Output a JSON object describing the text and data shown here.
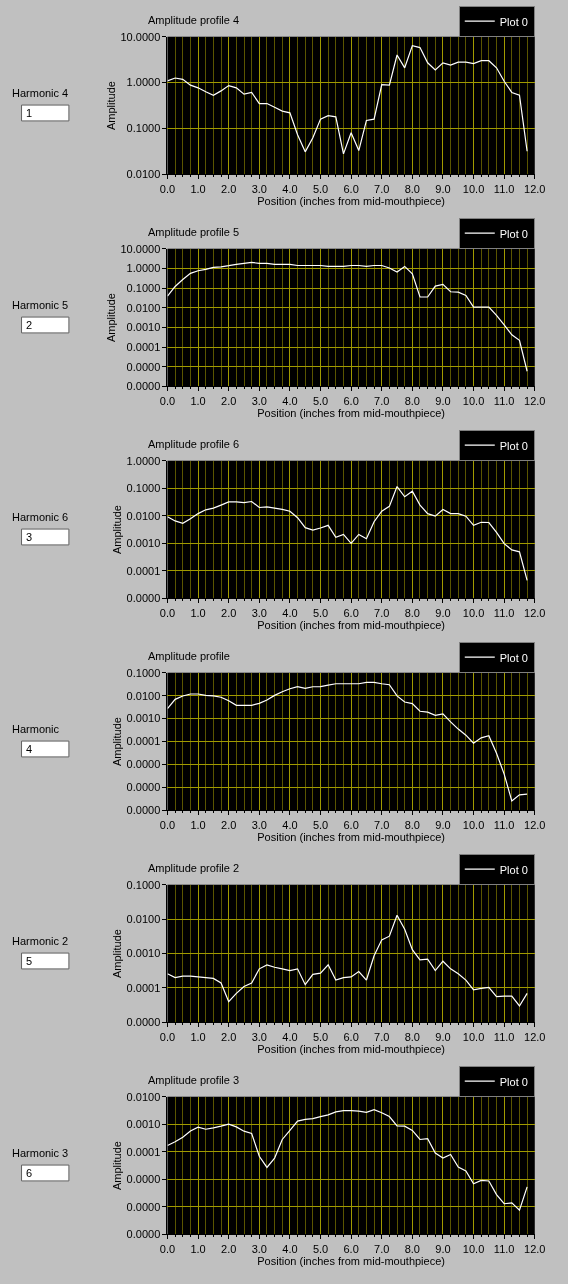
{
  "chart_data": [
    {
      "type": "line",
      "title": "Amplitude profile 4",
      "xlabel": "Position (inches from mid-mouthpiece)",
      "ylabel": "Amplitude",
      "log": "y",
      "grid": true,
      "legend": "top right",
      "annotations": [
        "Harmonic 4",
        "1"
      ],
      "xlim": [
        0,
        12
      ],
      "xticks": [
        {
          "value": 0,
          "label": "0.0"
        },
        {
          "value": 0.25,
          "label": null
        },
        {
          "value": 0.5,
          "label": null
        },
        {
          "value": 0.75,
          "label": null
        },
        {
          "value": 1,
          "label": "1.0"
        },
        {
          "value": 1.25,
          "label": null
        },
        {
          "value": 1.5,
          "label": null
        },
        {
          "value": 1.75,
          "label": null
        },
        {
          "value": 2,
          "label": "2.0"
        },
        {
          "value": 2.25,
          "label": null
        },
        {
          "value": 2.5,
          "label": null
        },
        {
          "value": 2.75,
          "label": null
        },
        {
          "value": 3,
          "label": "3.0"
        },
        {
          "value": 3.25,
          "label": null
        },
        {
          "value": 3.5,
          "label": null
        },
        {
          "value": 3.75,
          "label": null
        },
        {
          "value": 4,
          "label": "4.0"
        },
        {
          "value": 4.25,
          "label": null
        },
        {
          "value": 4.5,
          "label": null
        },
        {
          "value": 4.75,
          "label": null
        },
        {
          "value": 5,
          "label": "5.0"
        },
        {
          "value": 5.25,
          "label": null
        },
        {
          "value": 5.5,
          "label": null
        },
        {
          "value": 5.75,
          "label": null
        },
        {
          "value": 6,
          "label": "6.0"
        },
        {
          "value": 6.25,
          "label": null
        },
        {
          "value": 6.5,
          "label": null
        },
        {
          "value": 6.75,
          "label": null
        },
        {
          "value": 7,
          "label": "7.0"
        },
        {
          "value": 7.25,
          "label": null
        },
        {
          "value": 7.5,
          "label": null
        },
        {
          "value": 7.75,
          "label": null
        },
        {
          "value": 8,
          "label": "8.0"
        },
        {
          "value": 8.25,
          "label": null
        },
        {
          "value": 8.5,
          "label": null
        },
        {
          "value": 8.75,
          "label": null
        },
        {
          "value": 9,
          "label": "9.0"
        },
        {
          "value": 9.25,
          "label": null
        },
        {
          "value": 9.5,
          "label": null
        },
        {
          "value": 9.75,
          "label": null
        },
        {
          "value": 10,
          "label": "10.0"
        },
        {
          "value": 10.25,
          "label": null
        },
        {
          "value": 10.5,
          "label": null
        },
        {
          "value": 10.75,
          "label": null
        },
        {
          "value": 11,
          "label": "11.0"
        },
        {
          "value": 11.25,
          "label": null
        },
        {
          "value": 11.5,
          "label": null
        },
        {
          "value": 11.75,
          "label": null
        },
        {
          "value": 12,
          "label": "12.0"
        }
      ],
      "ylim": [
        0.01,
        10
      ],
      "yticks": [
        {
          "value": 0.01,
          "label": "0.0100"
        },
        {
          "value": 0.1,
          "label": "0.1000"
        },
        {
          "value": 1,
          "label": "1.0000"
        },
        {
          "value": 10,
          "label": "10.0000"
        }
      ],
      "x": [
        0,
        0.25,
        0.5,
        0.75,
        1,
        1.25,
        1.5,
        1.75,
        2,
        2.25,
        2.5,
        2.75,
        3,
        3.25,
        3.5,
        3.75,
        4,
        4.25,
        4.5,
        4.75,
        5,
        5.25,
        5.5,
        5.75,
        6,
        6.25,
        6.5,
        6.75,
        7,
        7.25,
        7.5,
        7.75,
        8,
        8.25,
        8.5,
        8.75,
        9,
        9.25,
        9.5,
        9.75,
        10,
        10.25,
        10.5,
        10.75,
        11,
        11.25,
        11.5,
        11.75
      ],
      "series": [
        {
          "name": "Plot 0",
          "color": "#ffffff",
          "values": [
            1.09,
            1.26,
            1.18,
            0.88,
            0.77,
            0.63,
            0.53,
            0.66,
            0.86,
            0.77,
            0.56,
            0.61,
            0.35,
            0.35,
            0.29,
            0.24,
            0.22,
            0.073,
            0.031,
            0.063,
            0.16,
            0.19,
            0.18,
            0.028,
            0.081,
            0.033,
            0.15,
            0.16,
            0.9,
            0.88,
            4.0,
            2.1,
            6.4,
            5.8,
            2.7,
            1.9,
            2.7,
            2.4,
            2.8,
            2.8,
            2.6,
            3.0,
            3.0,
            2.1,
            1.07,
            0.61,
            0.53,
            0.032
          ]
        }
      ]
    },
    {
      "type": "line",
      "title": "Amplitude profile 5",
      "xlabel": "Position (inches from mid-mouthpiece)",
      "ylabel": "Amplitude",
      "log": "y",
      "grid": true,
      "legend": "top right",
      "annotations": [
        "Harmonic 5",
        "2"
      ],
      "xlim": [
        0,
        12
      ],
      "xticks": [
        {
          "value": 0,
          "label": "0.0"
        },
        {
          "value": 0.25,
          "label": null
        },
        {
          "value": 0.5,
          "label": null
        },
        {
          "value": 0.75,
          "label": null
        },
        {
          "value": 1,
          "label": "1.0"
        },
        {
          "value": 1.25,
          "label": null
        },
        {
          "value": 1.5,
          "label": null
        },
        {
          "value": 1.75,
          "label": null
        },
        {
          "value": 2,
          "label": "2.0"
        },
        {
          "value": 2.25,
          "label": null
        },
        {
          "value": 2.5,
          "label": null
        },
        {
          "value": 2.75,
          "label": null
        },
        {
          "value": 3,
          "label": "3.0"
        },
        {
          "value": 3.25,
          "label": null
        },
        {
          "value": 3.5,
          "label": null
        },
        {
          "value": 3.75,
          "label": null
        },
        {
          "value": 4,
          "label": "4.0"
        },
        {
          "value": 4.25,
          "label": null
        },
        {
          "value": 4.5,
          "label": null
        },
        {
          "value": 4.75,
          "label": null
        },
        {
          "value": 5,
          "label": "5.0"
        },
        {
          "value": 5.25,
          "label": null
        },
        {
          "value": 5.5,
          "label": null
        },
        {
          "value": 5.75,
          "label": null
        },
        {
          "value": 6,
          "label": "6.0"
        },
        {
          "value": 6.25,
          "label": null
        },
        {
          "value": 6.5,
          "label": null
        },
        {
          "value": 6.75,
          "label": null
        },
        {
          "value": 7,
          "label": "7.0"
        },
        {
          "value": 7.25,
          "label": null
        },
        {
          "value": 7.5,
          "label": null
        },
        {
          "value": 7.75,
          "label": null
        },
        {
          "value": 8,
          "label": "8.0"
        },
        {
          "value": 8.25,
          "label": null
        },
        {
          "value": 8.5,
          "label": null
        },
        {
          "value": 8.75,
          "label": null
        },
        {
          "value": 9,
          "label": "9.0"
        },
        {
          "value": 9.25,
          "label": null
        },
        {
          "value": 9.5,
          "label": null
        },
        {
          "value": 9.75,
          "label": null
        },
        {
          "value": 10,
          "label": "10.0"
        },
        {
          "value": 10.25,
          "label": null
        },
        {
          "value": 10.5,
          "label": null
        },
        {
          "value": 10.75,
          "label": null
        },
        {
          "value": 11,
          "label": "11.0"
        },
        {
          "value": 11.25,
          "label": null
        },
        {
          "value": 11.5,
          "label": null
        },
        {
          "value": 11.75,
          "label": null
        },
        {
          "value": 12,
          "label": "12.0"
        }
      ],
      "ylim": [
        1e-06,
        10
      ],
      "yticks": [
        {
          "value": 1e-06,
          "label": "0.0000"
        },
        {
          "value": 1e-05,
          "label": "0.0000"
        },
        {
          "value": 0.0001,
          "label": "0.0001"
        },
        {
          "value": 0.001,
          "label": "0.0010"
        },
        {
          "value": 0.01,
          "label": "0.0100"
        },
        {
          "value": 0.1,
          "label": "0.1000"
        },
        {
          "value": 1,
          "label": "1.0000"
        },
        {
          "value": 10,
          "label": "10.0000"
        }
      ],
      "x": [
        0,
        0.25,
        0.5,
        0.75,
        1,
        1.25,
        1.5,
        1.75,
        2,
        2.25,
        2.5,
        2.75,
        3,
        3.25,
        3.5,
        3.75,
        4,
        4.25,
        4.5,
        4.75,
        5,
        5.25,
        5.5,
        5.75,
        6,
        6.25,
        6.5,
        6.75,
        7,
        7.25,
        7.5,
        7.75,
        8,
        8.25,
        8.5,
        8.75,
        9,
        9.25,
        9.5,
        9.75,
        10,
        10.25,
        10.5,
        10.75,
        11,
        11.25,
        11.5,
        11.75
      ],
      "series": [
        {
          "name": "Plot 0",
          "color": "#ffffff",
          "values": [
            0.039,
            0.12,
            0.27,
            0.56,
            0.76,
            0.89,
            1.12,
            1.2,
            1.37,
            1.6,
            1.8,
            2.0,
            1.8,
            1.8,
            1.6,
            1.6,
            1.6,
            1.4,
            1.4,
            1.4,
            1.4,
            1.26,
            1.26,
            1.26,
            1.4,
            1.4,
            1.26,
            1.4,
            1.4,
            1.04,
            0.65,
            1.26,
            0.53,
            0.035,
            0.035,
            0.126,
            0.153,
            0.065,
            0.062,
            0.042,
            0.0107,
            0.0107,
            0.0107,
            0.0041,
            0.00135,
            0.00042,
            0.00022,
            5.9e-06
          ]
        }
      ]
    },
    {
      "type": "line",
      "title": "Amplitude profile 6",
      "xlabel": "Position (inches from mid-mouthpiece)",
      "ylabel": "Amplitude",
      "log": "y",
      "grid": true,
      "legend": "top right",
      "annotations": [
        "Harmonic 6",
        "3"
      ],
      "xlim": [
        0,
        12
      ],
      "xticks": [
        {
          "value": 0,
          "label": "0.0"
        },
        {
          "value": 0.25,
          "label": null
        },
        {
          "value": 0.5,
          "label": null
        },
        {
          "value": 0.75,
          "label": null
        },
        {
          "value": 1,
          "label": "1.0"
        },
        {
          "value": 1.25,
          "label": null
        },
        {
          "value": 1.5,
          "label": null
        },
        {
          "value": 1.75,
          "label": null
        },
        {
          "value": 2,
          "label": "2.0"
        },
        {
          "value": 2.25,
          "label": null
        },
        {
          "value": 2.5,
          "label": null
        },
        {
          "value": 2.75,
          "label": null
        },
        {
          "value": 3,
          "label": "3.0"
        },
        {
          "value": 3.25,
          "label": null
        },
        {
          "value": 3.5,
          "label": null
        },
        {
          "value": 3.75,
          "label": null
        },
        {
          "value": 4,
          "label": "4.0"
        },
        {
          "value": 4.25,
          "label": null
        },
        {
          "value": 4.5,
          "label": null
        },
        {
          "value": 4.75,
          "label": null
        },
        {
          "value": 5,
          "label": "5.0"
        },
        {
          "value": 5.25,
          "label": null
        },
        {
          "value": 5.5,
          "label": null
        },
        {
          "value": 5.75,
          "label": null
        },
        {
          "value": 6,
          "label": "6.0"
        },
        {
          "value": 6.25,
          "label": null
        },
        {
          "value": 6.5,
          "label": null
        },
        {
          "value": 6.75,
          "label": null
        },
        {
          "value": 7,
          "label": "7.0"
        },
        {
          "value": 7.25,
          "label": null
        },
        {
          "value": 7.5,
          "label": null
        },
        {
          "value": 7.75,
          "label": null
        },
        {
          "value": 8,
          "label": "8.0"
        },
        {
          "value": 8.25,
          "label": null
        },
        {
          "value": 8.5,
          "label": null
        },
        {
          "value": 8.75,
          "label": null
        },
        {
          "value": 9,
          "label": "9.0"
        },
        {
          "value": 9.25,
          "label": null
        },
        {
          "value": 9.5,
          "label": null
        },
        {
          "value": 9.75,
          "label": null
        },
        {
          "value": 10,
          "label": "10.0"
        },
        {
          "value": 10.25,
          "label": null
        },
        {
          "value": 10.5,
          "label": null
        },
        {
          "value": 10.75,
          "label": null
        },
        {
          "value": 11,
          "label": "11.0"
        },
        {
          "value": 11.25,
          "label": null
        },
        {
          "value": 11.5,
          "label": null
        },
        {
          "value": 11.75,
          "label": null
        },
        {
          "value": 12,
          "label": "12.0"
        }
      ],
      "ylim": [
        1e-05,
        1
      ],
      "yticks": [
        {
          "value": 1e-05,
          "label": "0.0000"
        },
        {
          "value": 0.0001,
          "label": "0.0001"
        },
        {
          "value": 0.001,
          "label": "0.0010"
        },
        {
          "value": 0.01,
          "label": "0.0100"
        },
        {
          "value": 0.1,
          "label": "0.1000"
        },
        {
          "value": 1,
          "label": "1.0000"
        }
      ],
      "x": [
        0,
        0.25,
        0.5,
        0.75,
        1,
        1.25,
        1.5,
        1.75,
        2,
        2.25,
        2.5,
        2.75,
        3,
        3.25,
        3.5,
        3.75,
        4,
        4.25,
        4.5,
        4.75,
        5,
        5.25,
        5.5,
        5.75,
        6,
        6.25,
        6.5,
        6.75,
        7,
        7.25,
        7.5,
        7.75,
        8,
        8.25,
        8.5,
        8.75,
        9,
        9.25,
        9.5,
        9.75,
        10,
        10.25,
        10.5,
        10.75,
        11,
        11.25,
        11.5,
        11.75
      ],
      "series": [
        {
          "name": "Plot 0",
          "color": "#ffffff",
          "values": [
            0.0092,
            0.0065,
            0.0053,
            0.0078,
            0.012,
            0.0165,
            0.019,
            0.0245,
            0.032,
            0.032,
            0.03,
            0.033,
            0.02,
            0.021,
            0.019,
            0.017,
            0.0147,
            0.0085,
            0.0037,
            0.003,
            0.0036,
            0.0045,
            0.00165,
            0.0021,
            0.001,
            0.0021,
            0.00147,
            0.0061,
            0.0147,
            0.022,
            0.115,
            0.049,
            0.078,
            0.0245,
            0.012,
            0.0097,
            0.017,
            0.012,
            0.012,
            0.0097,
            0.0045,
            0.0058,
            0.0057,
            0.0025,
            0.00097,
            0.00058,
            0.00049,
            4.5e-05
          ]
        }
      ]
    },
    {
      "type": "line",
      "title": "Amplitude profile",
      "xlabel": "Position (inches from mid-mouthpiece)",
      "ylabel": "Amplitude",
      "log": "y",
      "grid": true,
      "legend": "top right",
      "annotations": [
        "Harmonic",
        "4"
      ],
      "xlim": [
        0,
        12
      ],
      "xticks": [
        {
          "value": 0,
          "label": "0.0"
        },
        {
          "value": 0.25,
          "label": null
        },
        {
          "value": 0.5,
          "label": null
        },
        {
          "value": 0.75,
          "label": null
        },
        {
          "value": 1,
          "label": "1.0"
        },
        {
          "value": 1.25,
          "label": null
        },
        {
          "value": 1.5,
          "label": null
        },
        {
          "value": 1.75,
          "label": null
        },
        {
          "value": 2,
          "label": "2.0"
        },
        {
          "value": 2.25,
          "label": null
        },
        {
          "value": 2.5,
          "label": null
        },
        {
          "value": 2.75,
          "label": null
        },
        {
          "value": 3,
          "label": "3.0"
        },
        {
          "value": 3.25,
          "label": null
        },
        {
          "value": 3.5,
          "label": null
        },
        {
          "value": 3.75,
          "label": null
        },
        {
          "value": 4,
          "label": "4.0"
        },
        {
          "value": 4.25,
          "label": null
        },
        {
          "value": 4.5,
          "label": null
        },
        {
          "value": 4.75,
          "label": null
        },
        {
          "value": 5,
          "label": "5.0"
        },
        {
          "value": 5.25,
          "label": null
        },
        {
          "value": 5.5,
          "label": null
        },
        {
          "value": 5.75,
          "label": null
        },
        {
          "value": 6,
          "label": "6.0"
        },
        {
          "value": 6.25,
          "label": null
        },
        {
          "value": 6.5,
          "label": null
        },
        {
          "value": 6.75,
          "label": null
        },
        {
          "value": 7,
          "label": "7.0"
        },
        {
          "value": 7.25,
          "label": null
        },
        {
          "value": 7.5,
          "label": null
        },
        {
          "value": 7.75,
          "label": null
        },
        {
          "value": 8,
          "label": "8.0"
        },
        {
          "value": 8.25,
          "label": null
        },
        {
          "value": 8.5,
          "label": null
        },
        {
          "value": 8.75,
          "label": null
        },
        {
          "value": 9,
          "label": "9.0"
        },
        {
          "value": 9.25,
          "label": null
        },
        {
          "value": 9.5,
          "label": null
        },
        {
          "value": 9.75,
          "label": null
        },
        {
          "value": 10,
          "label": "10.0"
        },
        {
          "value": 10.25,
          "label": null
        },
        {
          "value": 10.5,
          "label": null
        },
        {
          "value": 10.75,
          "label": null
        },
        {
          "value": 11,
          "label": "11.0"
        },
        {
          "value": 11.25,
          "label": null
        },
        {
          "value": 11.5,
          "label": null
        },
        {
          "value": 11.75,
          "label": null
        },
        {
          "value": 12,
          "label": "12.0"
        }
      ],
      "ylim": [
        1e-07,
        0.1
      ],
      "yticks": [
        {
          "value": 1e-07,
          "label": "0.0000"
        },
        {
          "value": 1e-06,
          "label": "0.0000"
        },
        {
          "value": 1e-05,
          "label": "0.0000"
        },
        {
          "value": 0.0001,
          "label": "0.0001"
        },
        {
          "value": 0.001,
          "label": "0.0010"
        },
        {
          "value": 0.01,
          "label": "0.0100"
        },
        {
          "value": 0.1,
          "label": "0.1000"
        }
      ],
      "x": [
        0,
        0.25,
        0.5,
        0.75,
        1,
        1.25,
        1.5,
        1.75,
        2,
        2.25,
        2.5,
        2.75,
        3,
        3.25,
        3.5,
        3.75,
        4,
        4.25,
        4.5,
        4.75,
        5,
        5.25,
        5.5,
        5.75,
        6,
        6.25,
        6.5,
        6.75,
        7,
        7.25,
        7.5,
        7.75,
        8,
        8.25,
        8.5,
        8.75,
        9,
        9.25,
        9.5,
        9.75,
        10,
        10.25,
        10.5,
        10.75,
        11,
        11.25,
        11.5,
        11.75
      ],
      "series": [
        {
          "name": "Plot 0",
          "color": "#ffffff",
          "values": [
            0.0027,
            0.0069,
            0.0097,
            0.0118,
            0.0118,
            0.0103,
            0.0097,
            0.0085,
            0.006,
            0.0038,
            0.0038,
            0.0038,
            0.0046,
            0.0065,
            0.0103,
            0.0149,
            0.02,
            0.0245,
            0.021,
            0.0245,
            0.025,
            0.029,
            0.033,
            0.033,
            0.033,
            0.033,
            0.038,
            0.038,
            0.033,
            0.03,
            0.0097,
            0.0053,
            0.0045,
            0.0021,
            0.0019,
            0.0014,
            0.0016,
            0.00072,
            0.00035,
            0.00019,
            8.5e-05,
            0.000145,
            0.00018,
            3.1e-05,
            3.8e-06,
            2.6e-07,
            4.8e-07,
            5.1e-07
          ]
        }
      ]
    },
    {
      "type": "line",
      "title": "Amplitude profile 2",
      "xlabel": "Position (inches from mid-mouthpiece)",
      "ylabel": "Amplitude",
      "log": "y",
      "grid": true,
      "legend": "top right",
      "annotations": [
        "Harmonic 2",
        "5"
      ],
      "xlim": [
        0,
        12
      ],
      "xticks": [
        {
          "value": 0,
          "label": "0.0"
        },
        {
          "value": 0.25,
          "label": null
        },
        {
          "value": 0.5,
          "label": null
        },
        {
          "value": 0.75,
          "label": null
        },
        {
          "value": 1,
          "label": "1.0"
        },
        {
          "value": 1.25,
          "label": null
        },
        {
          "value": 1.5,
          "label": null
        },
        {
          "value": 1.75,
          "label": null
        },
        {
          "value": 2,
          "label": "2.0"
        },
        {
          "value": 2.25,
          "label": null
        },
        {
          "value": 2.5,
          "label": null
        },
        {
          "value": 2.75,
          "label": null
        },
        {
          "value": 3,
          "label": "3.0"
        },
        {
          "value": 3.25,
          "label": null
        },
        {
          "value": 3.5,
          "label": null
        },
        {
          "value": 3.75,
          "label": null
        },
        {
          "value": 4,
          "label": "4.0"
        },
        {
          "value": 4.25,
          "label": null
        },
        {
          "value": 4.5,
          "label": null
        },
        {
          "value": 4.75,
          "label": null
        },
        {
          "value": 5,
          "label": "5.0"
        },
        {
          "value": 5.25,
          "label": null
        },
        {
          "value": 5.5,
          "label": null
        },
        {
          "value": 5.75,
          "label": null
        },
        {
          "value": 6,
          "label": "6.0"
        },
        {
          "value": 6.25,
          "label": null
        },
        {
          "value": 6.5,
          "label": null
        },
        {
          "value": 6.75,
          "label": null
        },
        {
          "value": 7,
          "label": "7.0"
        },
        {
          "value": 7.25,
          "label": null
        },
        {
          "value": 7.5,
          "label": null
        },
        {
          "value": 7.75,
          "label": null
        },
        {
          "value": 8,
          "label": "8.0"
        },
        {
          "value": 8.25,
          "label": null
        },
        {
          "value": 8.5,
          "label": null
        },
        {
          "value": 8.75,
          "label": null
        },
        {
          "value": 9,
          "label": "9.0"
        },
        {
          "value": 9.25,
          "label": null
        },
        {
          "value": 9.5,
          "label": null
        },
        {
          "value": 9.75,
          "label": null
        },
        {
          "value": 10,
          "label": "10.0"
        },
        {
          "value": 10.25,
          "label": null
        },
        {
          "value": 10.5,
          "label": null
        },
        {
          "value": 10.75,
          "label": null
        },
        {
          "value": 11,
          "label": "11.0"
        },
        {
          "value": 11.25,
          "label": null
        },
        {
          "value": 11.5,
          "label": null
        },
        {
          "value": 11.75,
          "label": null
        },
        {
          "value": 12,
          "label": "12.0"
        }
      ],
      "ylim": [
        1e-05,
        0.1
      ],
      "yticks": [
        {
          "value": 1e-05,
          "label": "0.0000"
        },
        {
          "value": 0.0001,
          "label": "0.0001"
        },
        {
          "value": 0.001,
          "label": "0.0010"
        },
        {
          "value": 0.01,
          "label": "0.0100"
        },
        {
          "value": 0.1,
          "label": "0.1000"
        }
      ],
      "x": [
        0,
        0.25,
        0.5,
        0.75,
        1,
        1.25,
        1.5,
        1.75,
        2,
        2.25,
        2.5,
        2.75,
        3,
        3.25,
        3.5,
        3.75,
        4,
        4.25,
        4.5,
        4.75,
        5,
        5.25,
        5.5,
        5.75,
        6,
        6.25,
        6.5,
        6.75,
        7,
        7.25,
        7.5,
        7.75,
        8,
        8.25,
        8.5,
        8.75,
        9,
        9.25,
        9.5,
        9.75,
        10,
        10.25,
        10.5,
        10.75,
        11,
        11.25,
        11.5,
        11.75
      ],
      "series": [
        {
          "name": "Plot 0",
          "color": "#ffffff",
          "values": [
            0.00026,
            0.0002,
            0.00022,
            0.00022,
            0.00021,
            0.0002,
            0.00019,
            0.00014,
            4e-05,
            7e-05,
            0.00011,
            0.00014,
            0.00036,
            0.00047,
            0.0004,
            0.00036,
            0.00032,
            0.00036,
            0.000125,
            0.00025,
            0.00027,
            0.00047,
            0.00017,
            0.0002,
            0.00021,
            0.0003,
            0.00017,
            0.00086,
            0.0025,
            0.0032,
            0.013,
            0.0051,
            0.0013,
            0.00066,
            0.00069,
            0.00032,
            0.0006,
            0.00036,
            0.00026,
            0.00017,
            8.8e-05,
            9.8e-05,
            0.000104,
            5.6e-05,
            5.8e-05,
            5.8e-05,
            3e-05,
            7e-05
          ]
        }
      ]
    },
    {
      "type": "line",
      "title": "Amplitude profile 3",
      "xlabel": "Position (inches from mid-mouthpiece)",
      "ylabel": "Amplitude",
      "log": "y",
      "grid": true,
      "legend": "top right",
      "annotations": [
        "Harmonic 3",
        "6"
      ],
      "xlim": [
        0,
        12
      ],
      "xticks": [
        {
          "value": 0,
          "label": "0.0"
        },
        {
          "value": 0.25,
          "label": null
        },
        {
          "value": 0.5,
          "label": null
        },
        {
          "value": 0.75,
          "label": null
        },
        {
          "value": 1,
          "label": "1.0"
        },
        {
          "value": 1.25,
          "label": null
        },
        {
          "value": 1.5,
          "label": null
        },
        {
          "value": 1.75,
          "label": null
        },
        {
          "value": 2,
          "label": "2.0"
        },
        {
          "value": 2.25,
          "label": null
        },
        {
          "value": 2.5,
          "label": null
        },
        {
          "value": 2.75,
          "label": null
        },
        {
          "value": 3,
          "label": "3.0"
        },
        {
          "value": 3.25,
          "label": null
        },
        {
          "value": 3.5,
          "label": null
        },
        {
          "value": 3.75,
          "label": null
        },
        {
          "value": 4,
          "label": "4.0"
        },
        {
          "value": 4.25,
          "label": null
        },
        {
          "value": 4.5,
          "label": null
        },
        {
          "value": 4.75,
          "label": null
        },
        {
          "value": 5,
          "label": "5.0"
        },
        {
          "value": 5.25,
          "label": null
        },
        {
          "value": 5.5,
          "label": null
        },
        {
          "value": 5.75,
          "label": null
        },
        {
          "value": 6,
          "label": "6.0"
        },
        {
          "value": 6.25,
          "label": null
        },
        {
          "value": 6.5,
          "label": null
        },
        {
          "value": 6.75,
          "label": null
        },
        {
          "value": 7,
          "label": "7.0"
        },
        {
          "value": 7.25,
          "label": null
        },
        {
          "value": 7.5,
          "label": null
        },
        {
          "value": 7.75,
          "label": null
        },
        {
          "value": 8,
          "label": "8.0"
        },
        {
          "value": 8.25,
          "label": null
        },
        {
          "value": 8.5,
          "label": null
        },
        {
          "value": 8.75,
          "label": null
        },
        {
          "value": 9,
          "label": "9.0"
        },
        {
          "value": 9.25,
          "label": null
        },
        {
          "value": 9.5,
          "label": null
        },
        {
          "value": 9.75,
          "label": null
        },
        {
          "value": 10,
          "label": "10.0"
        },
        {
          "value": 10.25,
          "label": null
        },
        {
          "value": 10.5,
          "label": null
        },
        {
          "value": 10.75,
          "label": null
        },
        {
          "value": 11,
          "label": "11.0"
        },
        {
          "value": 11.25,
          "label": null
        },
        {
          "value": 11.5,
          "label": null
        },
        {
          "value": 11.75,
          "label": null
        },
        {
          "value": 12,
          "label": "12.0"
        }
      ],
      "ylim": [
        1e-07,
        0.01
      ],
      "yticks": [
        {
          "value": 1e-07,
          "label": "0.0000"
        },
        {
          "value": 1e-06,
          "label": "0.0000"
        },
        {
          "value": 1e-05,
          "label": "0.0000"
        },
        {
          "value": 0.0001,
          "label": "0.0001"
        },
        {
          "value": 0.001,
          "label": "0.0010"
        },
        {
          "value": 0.01,
          "label": "0.0100"
        }
      ],
      "x": [
        0,
        0.25,
        0.5,
        0.75,
        1,
        1.25,
        1.5,
        1.75,
        2,
        2.25,
        2.5,
        2.75,
        3,
        3.25,
        3.5,
        3.75,
        4,
        4.25,
        4.5,
        4.75,
        5,
        5.25,
        5.5,
        5.75,
        6,
        6.25,
        6.5,
        6.75,
        7,
        7.25,
        7.5,
        7.75,
        8,
        8.25,
        8.5,
        8.75,
        9,
        9.25,
        9.5,
        9.75,
        10,
        10.25,
        10.5,
        10.75,
        11,
        11.25,
        11.5,
        11.75
      ],
      "series": [
        {
          "name": "Plot 0",
          "color": "#ffffff",
          "values": [
            0.00017,
            0.00023,
            0.00034,
            0.00057,
            0.00078,
            0.00066,
            0.00074,
            0.00085,
            0.001,
            0.0008,
            0.00056,
            0.00046,
            6.9e-05,
            2.7e-05,
            5.9e-05,
            0.00028,
            0.0006,
            0.0013,
            0.0015,
            0.0016,
            0.0019,
            0.0022,
            0.0028,
            0.0031,
            0.0031,
            0.003,
            0.0027,
            0.0034,
            0.0026,
            0.0019,
            0.00087,
            0.00085,
            0.0006,
            0.00028,
            0.0003,
            9e-05,
            5.9e-05,
            8e-05,
            2.8e-05,
            2e-05,
            6.9e-06,
            9.2e-06,
            8.7e-06,
            2.8e-06,
            1.3e-06,
            1.4e-06,
            7.6e-07,
            5.3e-06
          ]
        }
      ]
    }
  ]
}
